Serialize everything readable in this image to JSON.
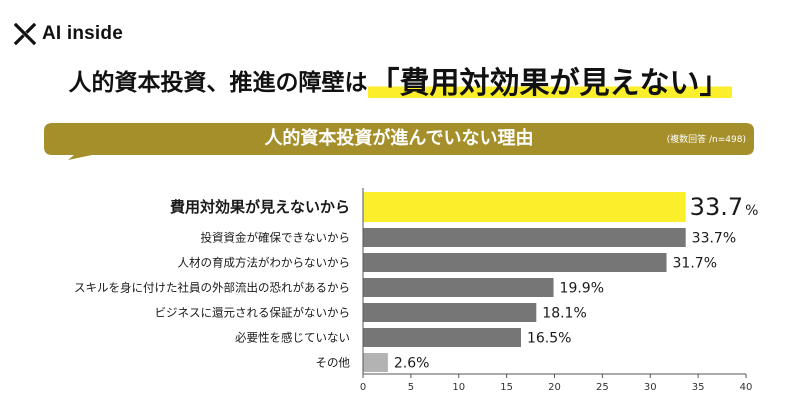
{
  "brand": {
    "name": "AI inside",
    "icon": "x-logo-icon"
  },
  "headline": {
    "prefix": "人的資本投資、推進の障壁は",
    "highlight": "「費用対効果が見えない」"
  },
  "banner": {
    "title": "人的資本投資が進んでいない理由",
    "note": "(複数回答 /n=498)"
  },
  "colors": {
    "accent": "#fbee2a",
    "banner": "#a48f2a",
    "bar": "#767676",
    "other_bar": "#b3b3b3"
  },
  "chart_data": {
    "type": "bar",
    "orientation": "horizontal",
    "categories": [
      "費用対効果が見えないから",
      "投資資金が確保できないから",
      "人材の育成方法がわからないから",
      "スキルを身に付けた社員の外部流出の恐れがあるから",
      "ビジネスに還元される保証がないから",
      "必要性を感じていない",
      "その他"
    ],
    "values": [
      33.7,
      33.7,
      31.7,
      19.9,
      18.1,
      16.5,
      2.6
    ],
    "value_labels": [
      "33.7",
      "33.7%",
      "31.7%",
      "19.9%",
      "18.1%",
      "16.5%",
      "2.6%"
    ],
    "highlight_unit": "%",
    "xlim": [
      0,
      40
    ],
    "xticks": [
      "0",
      "5",
      "10",
      "15",
      "20",
      "25",
      "30",
      "35",
      "40"
    ],
    "grid": false,
    "legend": "none"
  }
}
